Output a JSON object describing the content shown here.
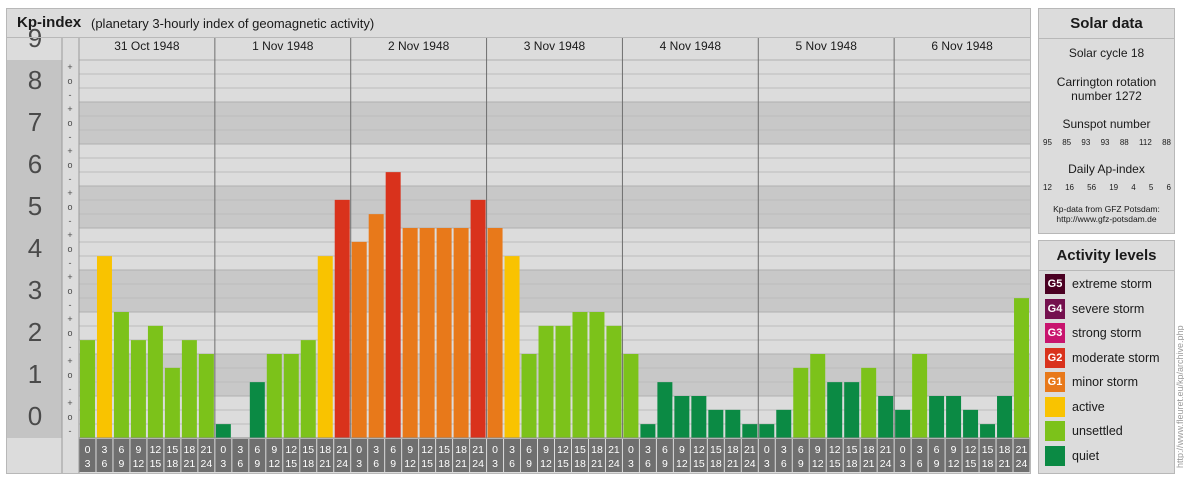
{
  "title": {
    "main": "Kp-index",
    "sub": "(planetary 3-hourly index of geomagnetic activity)"
  },
  "colors": {
    "quiet": "#0b8a44",
    "unsettled": "#7cc21a",
    "active": "#f9c300",
    "g1": "#e8791a",
    "g2": "#d9321c",
    "g3": "#c8146e",
    "g4": "#74104e",
    "g5": "#4a0022"
  },
  "chart_data": {
    "type": "bar",
    "title": "Kp-index",
    "ylim": [
      0,
      9
    ],
    "y_ticks": [
      "0",
      "1",
      "2",
      "3",
      "4",
      "5",
      "6",
      "7",
      "8",
      "9"
    ],
    "sub_ticks": [
      "-",
      "o",
      "+"
    ],
    "days": [
      "31 Oct 1948",
      "1 Nov 1948",
      "2 Nov 1948",
      "3 Nov 1948",
      "4 Nov 1948",
      "5 Nov 1948",
      "6 Nov 1948"
    ],
    "interval_starts": [
      "0",
      "3",
      "6",
      "9",
      "12",
      "15",
      "18",
      "21"
    ],
    "interval_ends": [
      "3",
      "6",
      "9",
      "12",
      "15",
      "18",
      "21",
      "24"
    ],
    "values": [
      [
        2.33,
        4.33,
        3.0,
        2.33,
        2.67,
        1.67,
        2.33,
        2.0
      ],
      [
        0.33,
        0.0,
        1.33,
        2.0,
        2.0,
        2.33,
        4.33,
        5.67
      ],
      [
        4.67,
        5.33,
        6.33,
        5.0,
        5.0,
        5.0,
        5.0,
        5.67
      ],
      [
        5.0,
        4.33,
        2.0,
        2.67,
        2.67,
        3.0,
        3.0,
        2.67
      ],
      [
        2.0,
        0.33,
        1.33,
        1.0,
        1.0,
        0.67,
        0.67,
        0.33
      ],
      [
        0.33,
        0.67,
        1.67,
        2.0,
        1.33,
        1.33,
        1.67,
        1.0
      ],
      [
        0.67,
        2.0,
        1.0,
        1.0,
        0.67,
        0.33,
        1.0,
        3.33
      ]
    ]
  },
  "solar": {
    "title": "Solar data",
    "cycle": "Solar cycle 18",
    "carrington_1": "Carrington rotation",
    "carrington_2": "number 1272",
    "sunspot_label": "Sunspot number",
    "sunspots": [
      "95",
      "85",
      "93",
      "93",
      "88",
      "112",
      "88"
    ],
    "ap_label": "Daily Ap-index",
    "ap": [
      "12",
      "16",
      "56",
      "19",
      "4",
      "5",
      "6"
    ],
    "credit_1": "Kp-data from GFZ Potsdam:",
    "credit_2": "http://www.gfz-potsdam.de"
  },
  "levels": {
    "title": "Activity levels",
    "items": [
      {
        "code": "G5",
        "label": "extreme storm",
        "color": "#4a0022"
      },
      {
        "code": "G4",
        "label": "severe storm",
        "color": "#74104e"
      },
      {
        "code": "G3",
        "label": "strong storm",
        "color": "#c8146e"
      },
      {
        "code": "G2",
        "label": "moderate storm",
        "color": "#d9321c"
      },
      {
        "code": "G1",
        "label": "minor storm",
        "color": "#e8791a"
      },
      {
        "code": "",
        "label": "active",
        "color": "#f9c300"
      },
      {
        "code": "",
        "label": "unsettled",
        "color": "#7cc21a"
      },
      {
        "code": "",
        "label": "quiet",
        "color": "#0b8a44"
      }
    ]
  },
  "watermark": "http://www.fleuret.eu/kp/archive.php"
}
